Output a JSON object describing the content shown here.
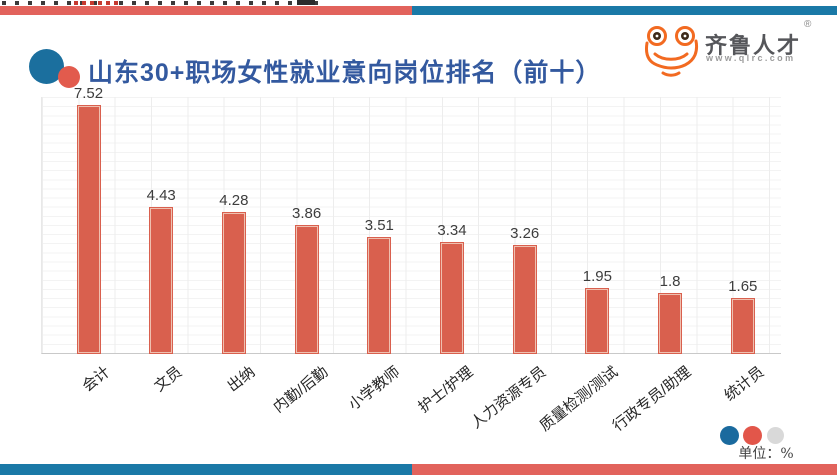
{
  "top_banner": {
    "left_color": "#e2635c",
    "right_color": "#1a79a7"
  },
  "header": {
    "title": "山东30+职场女性就业意向岗位排名（前十）",
    "title_color": "#33599f",
    "icon_big_color": "#1b6f9e",
    "icon_small_color": "#e25b4d"
  },
  "logo": {
    "brand": "齐鲁人才",
    "website": "www.qlrc.com",
    "registered": "®",
    "orange": "#f26a21",
    "brand_color": "#55565a",
    "site_color": "#9b9b9b"
  },
  "chart_data": {
    "type": "bar",
    "title": "山东30+职场女性就业意向岗位排名（前十）",
    "categories": [
      "会计",
      "文员",
      "出纳",
      "内勤/后勤",
      "小学教师",
      "护士/护理",
      "人力资源专员",
      "质量检测/测试",
      "行政专员/助理",
      "统计员"
    ],
    "values": [
      7.52,
      4.43,
      4.28,
      3.86,
      3.51,
      3.34,
      3.26,
      1.95,
      1.8,
      1.65
    ],
    "value_labels": [
      "7.52",
      "4.43",
      "4.28",
      "3.86",
      "3.51",
      "3.34",
      "3.26",
      "1.95",
      "1.8",
      "1.65"
    ],
    "xlabel": "",
    "ylabel": "",
    "unit_note": "单位：%",
    "ylim": [
      0,
      7.8
    ],
    "grid": true,
    "legend": "none",
    "bar_color": "#d9604e",
    "bar_border_color": "#efc0b0"
  },
  "footer": {
    "unit_note": "单位：%",
    "dots": [
      "#1a6a9e",
      "#e2564a",
      "#d9d9d9"
    ],
    "bottom_banner": {
      "left_color": "#1a79a7",
      "right_color": "#e2635c"
    }
  }
}
